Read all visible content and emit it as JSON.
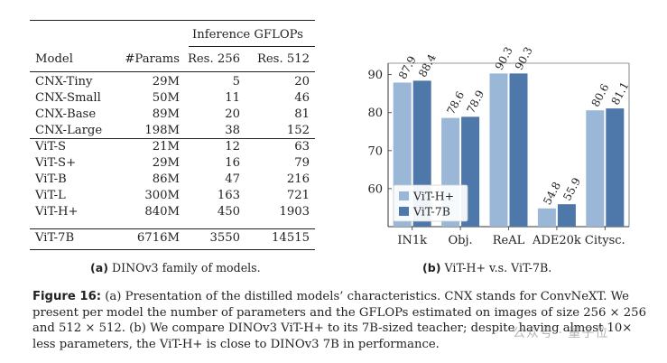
{
  "table": {
    "group_header": "Inference GFLOPs",
    "columns": [
      "Model",
      "#Params",
      "Res. 256",
      "Res. 512"
    ],
    "groups": [
      [
        [
          "CNX-Tiny",
          "29M",
          "5",
          "20"
        ],
        [
          "CNX-Small",
          "50M",
          "11",
          "46"
        ],
        [
          "CNX-Base",
          "89M",
          "20",
          "81"
        ],
        [
          "CNX-Large",
          "198M",
          "38",
          "152"
        ]
      ],
      [
        [
          "ViT-S",
          "21M",
          "12",
          "63"
        ],
        [
          "ViT-S+",
          "29M",
          "16",
          "79"
        ],
        [
          "ViT-B",
          "86M",
          "47",
          "216"
        ],
        [
          "ViT-L",
          "300M",
          "163",
          "721"
        ],
        [
          "ViT-H+",
          "840M",
          "450",
          "1903"
        ]
      ],
      [
        [
          "ViT-7B",
          "6716M",
          "3550",
          "14515"
        ]
      ]
    ],
    "caption_label": "(a)",
    "caption_text": "DINOv3 family of models."
  },
  "chart_data": {
    "type": "bar",
    "categories": [
      "IN1k",
      "Obj.",
      "ReAL",
      "ADE20k",
      "Citysc."
    ],
    "series": [
      {
        "name": "ViT-H+",
        "values": [
          87.9,
          78.6,
          90.3,
          54.8,
          80.6
        ],
        "color": "#9ab7d8"
      },
      {
        "name": "ViT-7B",
        "values": [
          88.4,
          78.9,
          90.3,
          55.9,
          81.1
        ],
        "color": "#4e77aa"
      }
    ],
    "y_ticks": [
      60,
      70,
      80,
      90
    ],
    "ylim": [
      50,
      93
    ],
    "legend_position": "lower-left",
    "grid": false,
    "caption_label": "(b)",
    "caption_text": "ViT-H+ v.s. ViT-7B."
  },
  "figure_caption": {
    "label": "Figure 16:",
    "text": "(a) Presentation of the distilled models’ characteristics. CNX stands for ConvNeXT. We present per model the number of parameters and the GFLOPs estimated on images of size 256 × 256 and 512 × 512. (b) We compare DINOv3 ViT-H+ to its 7B-sized teacher; despite having almost 10× less parameters, the ViT-H+ is close to DINOv3 7B in performance."
  },
  "watermark": "公众号 · 量子位"
}
